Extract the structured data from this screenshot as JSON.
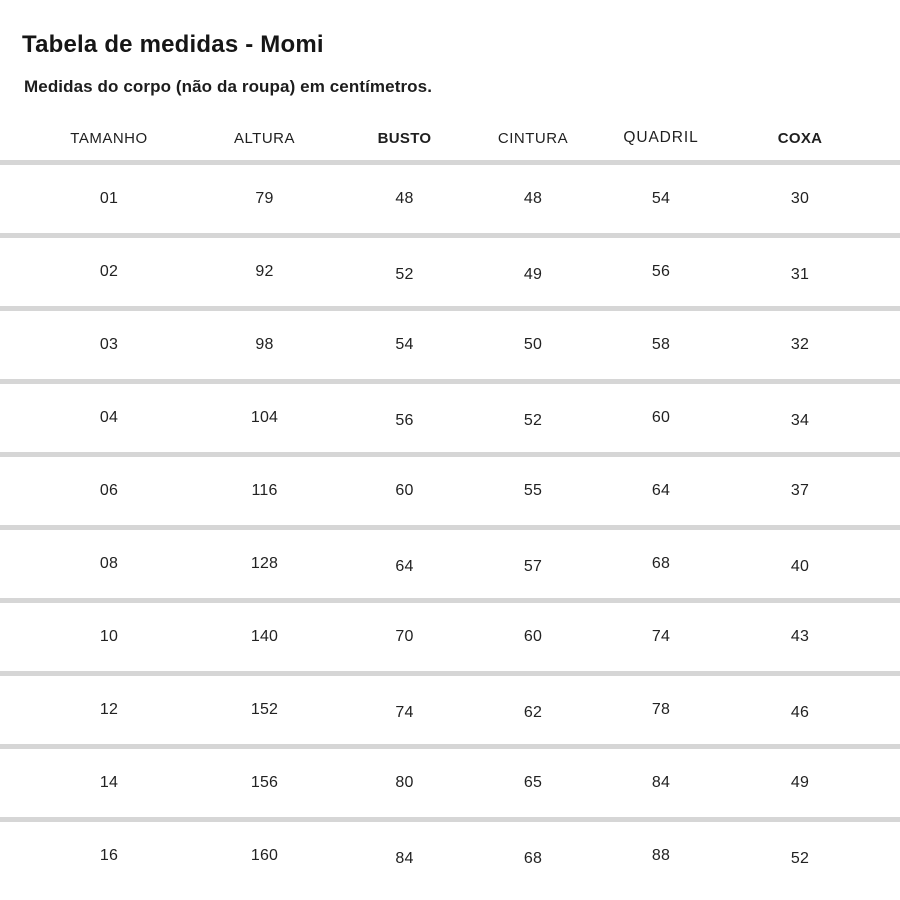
{
  "page": {
    "title": "Tabela de medidas - Momi",
    "subtitle": "Medidas do corpo (não da roupa) em centímetros."
  },
  "table": {
    "columns": [
      "TAMANHO",
      "ALTURA",
      "BUSTO",
      "CINTURA",
      "QUADRIL",
      "COXA"
    ],
    "rows": [
      [
        "01",
        "79",
        "48",
        "48",
        "54",
        "30"
      ],
      [
        "02",
        "92",
        "52",
        "49",
        "56",
        "31"
      ],
      [
        "03",
        "98",
        "54",
        "50",
        "58",
        "32"
      ],
      [
        "04",
        "104",
        "56",
        "52",
        "60",
        "34"
      ],
      [
        "06",
        "116",
        "60",
        "55",
        "64",
        "37"
      ],
      [
        "08",
        "128",
        "64",
        "57",
        "68",
        "40"
      ],
      [
        "10",
        "140",
        "70",
        "60",
        "74",
        "43"
      ],
      [
        "12",
        "152",
        "74",
        "62",
        "78",
        "46"
      ],
      [
        "14",
        "156",
        "80",
        "65",
        "84",
        "49"
      ],
      [
        "16",
        "160",
        "84",
        "68",
        "88",
        "52"
      ]
    ],
    "unit": "cm"
  },
  "chart_data": {
    "type": "table",
    "title": "Tabela de medidas - Momi",
    "subtitle": "Medidas do corpo (não da roupa) em centímetros.",
    "columns": [
      "TAMANHO",
      "ALTURA",
      "BUSTO",
      "CINTURA",
      "QUADRIL",
      "COXA"
    ],
    "rows": [
      [
        "01",
        "79",
        "48",
        "48",
        "54",
        "30"
      ],
      [
        "02",
        "92",
        "52",
        "49",
        "56",
        "31"
      ],
      [
        "03",
        "98",
        "54",
        "50",
        "58",
        "32"
      ],
      [
        "04",
        "104",
        "56",
        "52",
        "60",
        "34"
      ],
      [
        "06",
        "116",
        "60",
        "55",
        "64",
        "37"
      ],
      [
        "08",
        "128",
        "64",
        "57",
        "68",
        "40"
      ],
      [
        "10",
        "140",
        "70",
        "60",
        "74",
        "43"
      ],
      [
        "12",
        "152",
        "74",
        "62",
        "78",
        "46"
      ],
      [
        "14",
        "156",
        "80",
        "65",
        "84",
        "49"
      ],
      [
        "16",
        "160",
        "84",
        "68",
        "88",
        "52"
      ]
    ]
  },
  "colors": {
    "background": "#ffffff",
    "text": "#1d1d1d",
    "divider": "#d6d6d6"
  }
}
